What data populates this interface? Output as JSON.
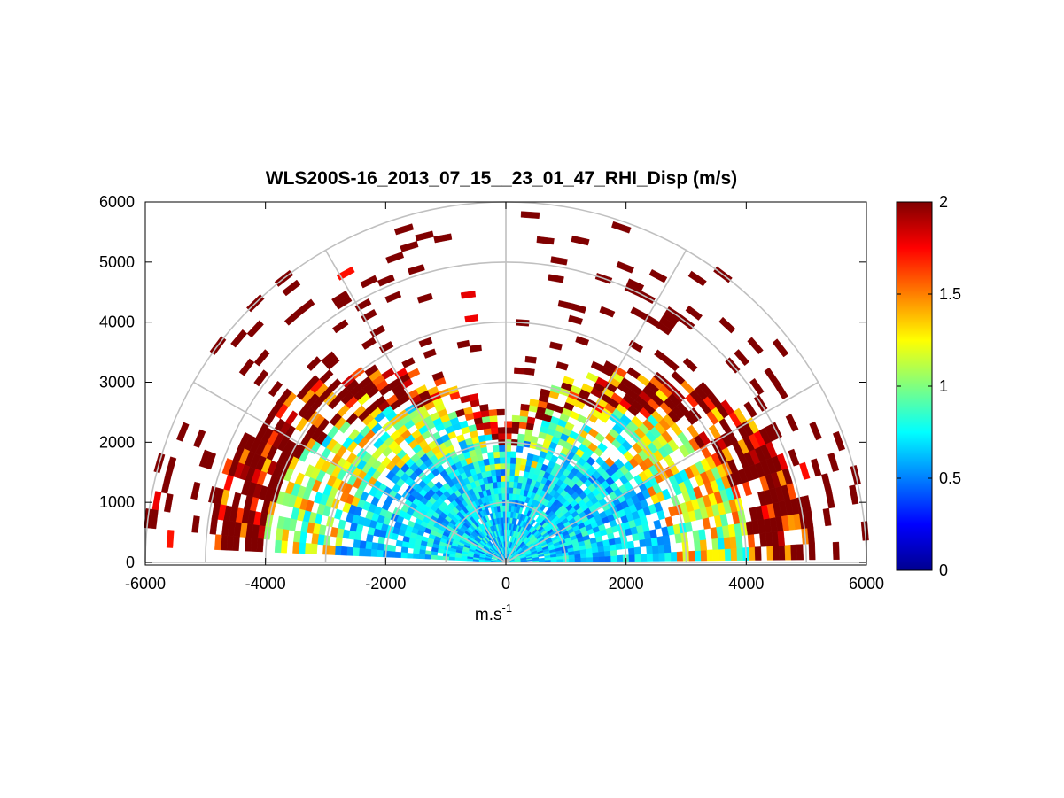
{
  "chart_data": {
    "type": "heatmap",
    "title": "WLS200S-16_2013_07_15__23_01_47_RHI_Disp (m/s)",
    "xlabel": "m.s",
    "xlabel_superscript": "-1",
    "ylabel": "",
    "xlim": [
      -6000,
      6000
    ],
    "ylim": [
      0,
      6000
    ],
    "x_ticks": [
      "-6000",
      "-4000",
      "-2000",
      "0",
      "2000",
      "4000",
      "6000"
    ],
    "y_ticks": [
      "0",
      "1000",
      "2000",
      "3000",
      "4000",
      "5000",
      "6000"
    ],
    "grid": true,
    "polar_grid": {
      "range_rings": [
        1000,
        2000,
        3000,
        4000,
        5000,
        6000
      ],
      "spokes_deg": [
        0,
        30,
        60,
        90,
        120,
        150,
        180
      ]
    },
    "colorbar": {
      "min": 0,
      "max": 2,
      "ticks": [
        "0",
        "0.5",
        "1",
        "1.5",
        "2"
      ],
      "colormap": "jet",
      "placement": "right"
    },
    "scan": {
      "elevation_min_deg": 2,
      "elevation_max_deg": 178,
      "elevation_step_deg": 3,
      "range_step_m": 100,
      "max_range_m": 6000,
      "core_range_m": 2300
    }
  }
}
